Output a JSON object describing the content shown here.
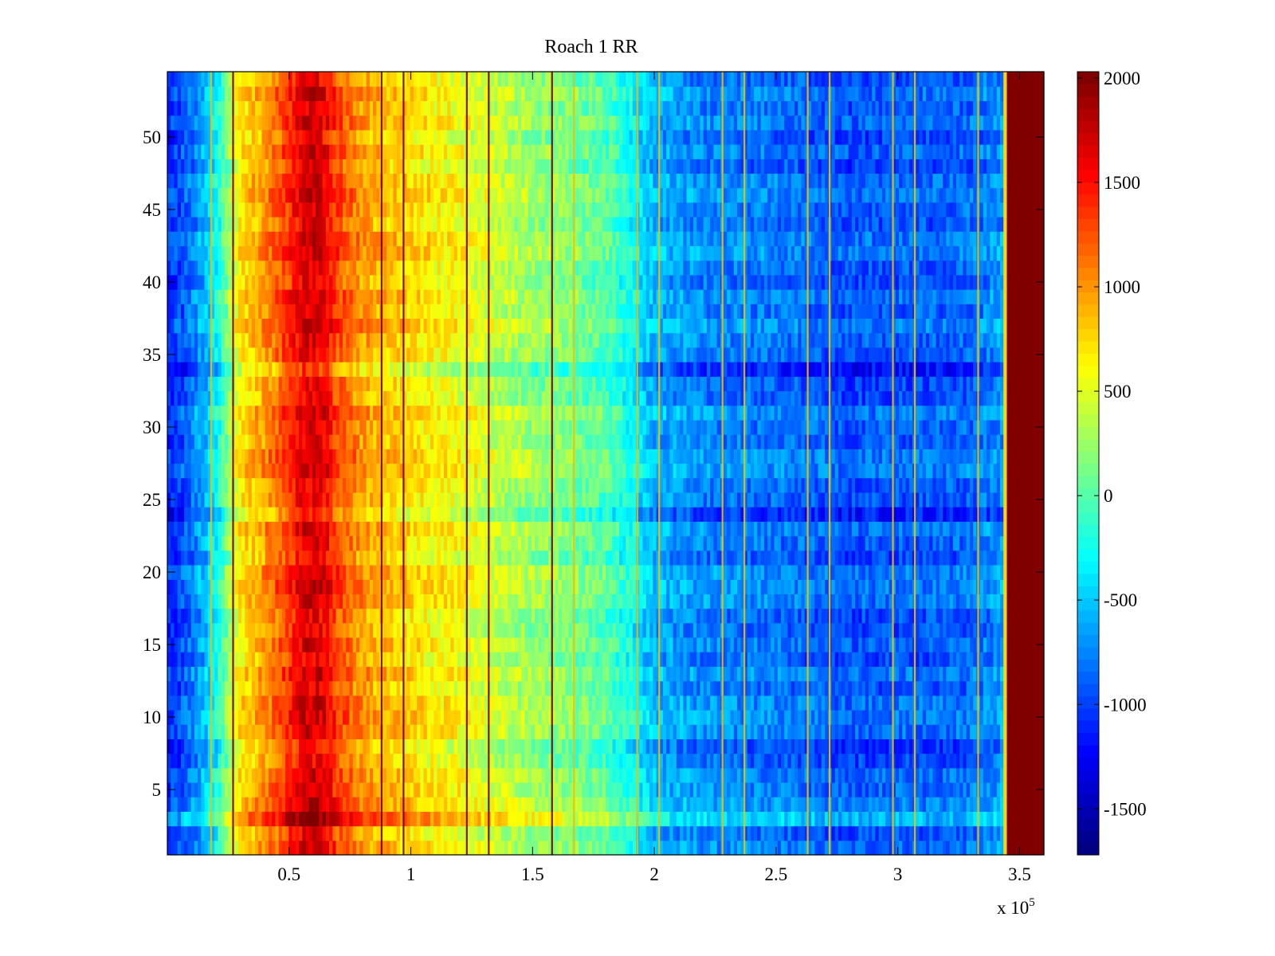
{
  "chart_data": {
    "type": "heatmap",
    "title": "Roach 1 RR",
    "xlabel": "",
    "ylabel": "",
    "x_multiplier_label": "x 10",
    "x_multiplier_exponent": "5",
    "xlim": [
      0,
      3.6
    ],
    "ylim": [
      0.5,
      54.5
    ],
    "x_ticks": [
      {
        "value": 0.5,
        "label": "0.5"
      },
      {
        "value": 1,
        "label": "1"
      },
      {
        "value": 1.5,
        "label": "1.5"
      },
      {
        "value": 2,
        "label": "2"
      },
      {
        "value": 2.5,
        "label": "2.5"
      },
      {
        "value": 3,
        "label": "3"
      },
      {
        "value": 3.5,
        "label": "3.5"
      }
    ],
    "y_ticks": [
      {
        "value": 5,
        "label": "5"
      },
      {
        "value": 10,
        "label": "10"
      },
      {
        "value": 15,
        "label": "15"
      },
      {
        "value": 20,
        "label": "20"
      },
      {
        "value": 25,
        "label": "25"
      },
      {
        "value": 30,
        "label": "30"
      },
      {
        "value": 35,
        "label": "35"
      },
      {
        "value": 40,
        "label": "40"
      },
      {
        "value": 45,
        "label": "45"
      },
      {
        "value": 50,
        "label": "50"
      }
    ],
    "rows": 54,
    "colorbar": {
      "colormap": "jet",
      "min": -1720,
      "max": 2030,
      "ticks": [
        {
          "value": 2000,
          "label": "2000"
        },
        {
          "value": 1500,
          "label": "1500"
        },
        {
          "value": 1000,
          "label": "1000"
        },
        {
          "value": 500,
          "label": "500"
        },
        {
          "value": 0,
          "label": "0"
        },
        {
          "value": -500,
          "label": "-500"
        },
        {
          "value": -1000,
          "label": "-1000"
        },
        {
          "value": -1500,
          "label": "-1500"
        }
      ]
    },
    "profile": {
      "x": [
        0,
        0.05,
        0.1,
        0.15,
        0.2,
        0.3,
        0.4,
        0.5,
        0.55,
        0.6,
        0.65,
        0.7,
        0.8,
        0.9,
        1.0,
        1.1,
        1.2,
        1.3,
        1.4,
        1.5,
        1.6,
        1.7,
        1.8,
        1.9,
        2.0,
        2.2,
        2.4,
        2.6,
        2.8,
        3.0,
        3.2,
        3.3,
        3.43,
        3.45,
        3.6
      ],
      "values": [
        -1100,
        -1000,
        -800,
        -600,
        -300,
        700,
        1000,
        1400,
        1650,
        1700,
        1600,
        1300,
        1000,
        850,
        750,
        650,
        600,
        450,
        350,
        250,
        200,
        100,
        0,
        -250,
        -600,
        -750,
        -800,
        -850,
        -950,
        -900,
        -900,
        -850,
        -700,
        2030,
        2030
      ]
    },
    "anomaly_rows": [
      {
        "row": 34,
        "offset": -300
      },
      {
        "row": 24,
        "offset": -250
      },
      {
        "row": 3,
        "offset": 350
      },
      {
        "row": 8,
        "offset": -150
      }
    ],
    "vertical_line_x": [
      0.18,
      0.27,
      0.88,
      0.97,
      1.23,
      1.32,
      1.58,
      1.67,
      1.93,
      2.02,
      2.28,
      2.37,
      2.63,
      2.72,
      2.98,
      3.07,
      3.33
    ]
  }
}
